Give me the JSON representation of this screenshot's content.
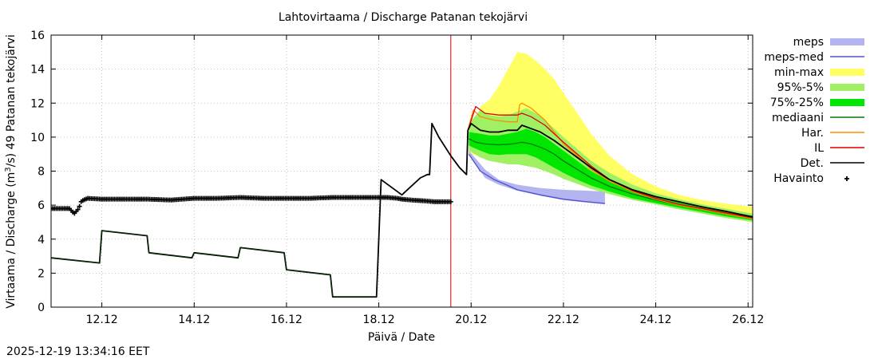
{
  "chart_data": {
    "type": "line",
    "title": "Lahtovirtaama / Discharge  Patanan tekojärvi",
    "xlabel": "Päivä / Date",
    "ylabel_parts": [
      "Virtaama / Discharge (m",
      "3",
      "/s)   49 Patanan tekojärvi"
    ],
    "timestamp": "2025-12-19 13:34:16 EET",
    "x_unit": "days (day-of-month, December 2025)",
    "xlim": [
      10.9,
      26.1
    ],
    "ylim": [
      0,
      16
    ],
    "xticks": [
      {
        "value": 12,
        "label": "12.12"
      },
      {
        "value": 14,
        "label": "14.12"
      },
      {
        "value": 16,
        "label": "16.12"
      },
      {
        "value": 18,
        "label": "18.12"
      },
      {
        "value": 20,
        "label": "20.12"
      },
      {
        "value": 22,
        "label": "22.12"
      },
      {
        "value": 24,
        "label": "24.12"
      },
      {
        "value": 26,
        "label": "26.12"
      }
    ],
    "yticks": [
      0,
      2,
      4,
      6,
      8,
      10,
      12,
      14,
      16
    ],
    "now_marker_x": 19.56,
    "legend_position": "right, outside plot",
    "legend": [
      {
        "label": "meps",
        "kind": "band",
        "color": "#b4b4f0"
      },
      {
        "label": "meps-med",
        "kind": "line",
        "color": "#5050d0"
      },
      {
        "label": "min-max",
        "kind": "band",
        "color": "#ffff64"
      },
      {
        "label": "95%-5%",
        "kind": "band",
        "color": "#a0f064"
      },
      {
        "label": "75%-25%",
        "kind": "band",
        "color": "#00e600"
      },
      {
        "label": "mediaani",
        "kind": "line",
        "color": "#007800"
      },
      {
        "label": "Har.",
        "kind": "line",
        "color": "#ff8c00"
      },
      {
        "label": "IL",
        "kind": "line",
        "color": "#e00000"
      },
      {
        "label": "Det.",
        "kind": "line",
        "color": "#000000"
      },
      {
        "label": "Havainto",
        "kind": "marker",
        "color": "#000000"
      }
    ],
    "bands": {
      "minmax": {
        "x": [
          19.95,
          20.2,
          20.4,
          20.6,
          20.8,
          21.0,
          21.2,
          21.4,
          21.6,
          21.8,
          22.0,
          22.3,
          22.6,
          23.0,
          23.5,
          24.0,
          24.5,
          25.0,
          25.5,
          26.1
        ],
        "upper": [
          9.8,
          11.8,
          12.2,
          13.0,
          14.0,
          15.0,
          14.9,
          14.5,
          14.0,
          13.4,
          12.6,
          11.4,
          10.2,
          8.9,
          7.8,
          7.1,
          6.6,
          6.3,
          6.1,
          5.9
        ],
        "lower": [
          9.0,
          8.9,
          8.8,
          8.7,
          8.6,
          8.5,
          8.4,
          8.3,
          8.1,
          7.9,
          7.6,
          7.3,
          7.0,
          6.7,
          6.35,
          6.1,
          5.8,
          5.55,
          5.3,
          5.0
        ]
      },
      "p95_5": {
        "x": [
          19.95,
          20.2,
          20.4,
          20.6,
          20.8,
          21.0,
          21.2,
          21.4,
          21.6,
          21.8,
          22.0,
          22.3,
          22.6,
          23.0,
          23.5,
          24.0,
          24.5,
          25.0,
          25.5,
          26.1
        ],
        "upper": [
          10.8,
          11.6,
          11.3,
          11.2,
          11.3,
          11.5,
          11.7,
          11.4,
          11.0,
          10.5,
          10.0,
          9.3,
          8.6,
          7.9,
          7.2,
          6.7,
          6.35,
          6.05,
          5.8,
          5.5
        ],
        "lower": [
          9.2,
          8.8,
          8.6,
          8.5,
          8.4,
          8.4,
          8.3,
          8.2,
          8.0,
          7.8,
          7.55,
          7.25,
          6.95,
          6.65,
          6.3,
          6.05,
          5.75,
          5.5,
          5.25,
          5.0
        ]
      },
      "p75_25": {
        "x": [
          19.95,
          20.2,
          20.4,
          20.6,
          20.8,
          21.0,
          21.2,
          21.4,
          21.6,
          21.8,
          22.0,
          22.3,
          22.6,
          23.0,
          23.5,
          24.0,
          24.5,
          25.0,
          25.5,
          26.1
        ],
        "upper": [
          10.3,
          10.2,
          10.1,
          10.1,
          10.2,
          10.3,
          10.5,
          10.3,
          10.0,
          9.6,
          9.2,
          8.6,
          8.0,
          7.4,
          6.85,
          6.45,
          6.15,
          5.9,
          5.65,
          5.38
        ],
        "lower": [
          9.5,
          9.2,
          9.0,
          8.95,
          9.0,
          9.0,
          9.0,
          8.8,
          8.5,
          8.2,
          7.9,
          7.5,
          7.15,
          6.8,
          6.4,
          6.12,
          5.85,
          5.6,
          5.35,
          5.1
        ]
      },
      "meps": {
        "x": [
          19.95,
          20.3,
          20.6,
          21.0,
          21.5,
          22.0,
          22.5,
          22.9
        ],
        "upper": [
          9.2,
          8.1,
          7.5,
          7.2,
          7.0,
          6.9,
          6.85,
          6.8
        ],
        "lower": [
          9.0,
          7.6,
          7.2,
          6.85,
          6.55,
          6.3,
          6.15,
          6.05
        ]
      }
    },
    "series": [
      {
        "name": "Det.",
        "color": "#000000",
        "width": 1.8,
        "x": [
          10.9,
          11.95,
          12.0,
          12.98,
          13.02,
          13.95,
          14.0,
          14.95,
          15.0,
          15.95,
          16.0,
          16.95,
          17.0,
          17.5,
          17.95,
          18.05,
          18.5,
          18.9,
          19.05,
          19.1,
          19.15,
          19.3,
          19.56,
          19.75,
          19.9,
          19.93,
          20.0,
          20.2,
          20.4,
          20.6,
          20.8,
          21.0,
          21.1,
          21.3,
          21.5,
          21.8,
          22.0,
          22.3,
          22.6,
          23.0,
          23.5,
          24.0,
          24.5,
          25.0,
          25.5,
          26.1
        ],
        "y": [
          2.9,
          2.6,
          4.5,
          4.2,
          3.2,
          2.9,
          3.2,
          2.9,
          3.5,
          3.2,
          2.2,
          1.9,
          0.6,
          0.6,
          0.6,
          7.5,
          6.6,
          7.6,
          7.8,
          7.8,
          10.8,
          10.0,
          8.9,
          8.2,
          7.8,
          10.4,
          10.8,
          10.4,
          10.3,
          10.3,
          10.4,
          10.4,
          10.7,
          10.5,
          10.3,
          9.8,
          9.4,
          8.8,
          8.2,
          7.5,
          6.9,
          6.5,
          6.2,
          5.9,
          5.65,
          5.3
        ]
      },
      {
        "name": "IL",
        "color": "#e00000",
        "width": 1.3,
        "x": [
          19.93,
          20.1,
          20.3,
          20.6,
          21.0,
          21.1,
          21.3,
          21.6,
          21.8,
          22.0,
          22.3,
          22.6,
          23.0,
          23.5,
          24.0,
          24.5,
          25.0,
          25.5,
          26.1
        ],
        "y": [
          10.4,
          11.8,
          11.4,
          11.3,
          11.3,
          11.4,
          11.2,
          10.7,
          10.2,
          9.7,
          9.0,
          8.3,
          7.5,
          6.85,
          6.4,
          6.05,
          5.8,
          5.55,
          5.25
        ]
      },
      {
        "name": "Har.",
        "color": "#ff8c00",
        "width": 1.3,
        "x": [
          19.93,
          20.05,
          20.2,
          20.5,
          20.8,
          21.0,
          21.05,
          21.1,
          21.3,
          21.6,
          21.8,
          22.0,
          22.3,
          22.6,
          23.0,
          23.5,
          24.0,
          24.5,
          25.0,
          25.5,
          26.1
        ],
        "y": [
          10.4,
          11.6,
          11.2,
          11.0,
          10.9,
          10.9,
          11.9,
          12.0,
          11.7,
          11.0,
          10.3,
          9.6,
          8.9,
          8.1,
          7.4,
          6.8,
          6.35,
          6.0,
          5.75,
          5.5,
          5.2
        ]
      },
      {
        "name": "mediaani",
        "color": "#007800",
        "width": 1.3,
        "x": [
          19.95,
          20.1,
          20.3,
          20.6,
          20.9,
          21.1,
          21.3,
          21.6,
          21.8,
          22.0,
          22.3,
          22.6,
          23.0,
          23.5,
          24.0,
          24.5,
          25.0,
          25.5,
          26.1
        ],
        "y": [
          9.9,
          9.7,
          9.6,
          9.55,
          9.6,
          9.7,
          9.6,
          9.3,
          9.0,
          8.6,
          8.1,
          7.6,
          7.1,
          6.65,
          6.3,
          6.0,
          5.75,
          5.5,
          5.25
        ]
      },
      {
        "name": "meps-med",
        "color": "#5050d0",
        "width": 1.3,
        "x": [
          19.95,
          20.2,
          20.5,
          20.8,
          21.0,
          21.5,
          22.0,
          22.5,
          22.9
        ],
        "y": [
          9.0,
          8.0,
          7.5,
          7.15,
          6.9,
          6.6,
          6.35,
          6.2,
          6.1
        ]
      }
    ],
    "observations": {
      "name": "Havainto",
      "color": "#000000",
      "x": [
        10.9,
        11.1,
        11.3,
        11.4,
        11.5,
        11.55,
        11.6,
        11.7,
        12.0,
        12.5,
        13.0,
        13.5,
        14.0,
        14.5,
        15.0,
        15.5,
        16.0,
        16.5,
        17.0,
        17.5,
        18.0,
        18.2,
        18.4,
        18.5,
        18.7,
        19.0,
        19.2,
        19.4,
        19.56
      ],
      "y": [
        5.8,
        5.8,
        5.8,
        5.5,
        5.8,
        6.2,
        6.3,
        6.4,
        6.35,
        6.35,
        6.35,
        6.3,
        6.4,
        6.4,
        6.45,
        6.4,
        6.4,
        6.4,
        6.45,
        6.45,
        6.45,
        6.45,
        6.4,
        6.35,
        6.3,
        6.25,
        6.2,
        6.2,
        6.2
      ],
      "count": 240
    }
  }
}
